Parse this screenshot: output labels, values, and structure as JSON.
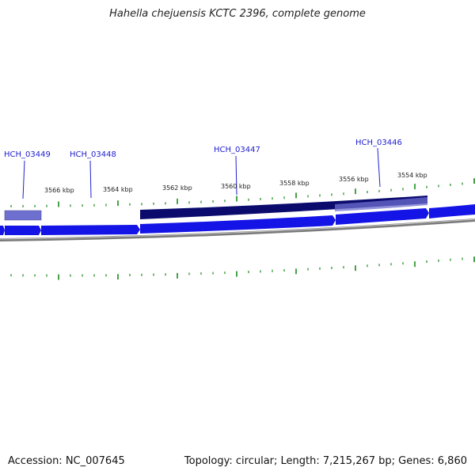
{
  "title": "Hahella chejuensis KCTC 2396, complete genome",
  "footer": {
    "accession": "Accession: NC_007645",
    "summary": "Topology: circular; Length: 7,215,267 bp; Genes: 6,860"
  },
  "colors": {
    "tick": "#1a8a1a",
    "gene_forward": "#1414e6",
    "gene_forward_light": "#5a5aff",
    "gene_reverse_dark": "#0b0b6e",
    "gene_reverse_light": "#6f6fd0",
    "backbone": "#7a7a7a",
    "label": "#2020d0"
  },
  "ticks": {
    "labels": [
      "3566 kbp",
      "3564 kbp",
      "3562 kbp",
      "3560 kbp",
      "3558 kbp",
      "3556 kbp",
      "3554 kbp"
    ]
  },
  "genes": {
    "labels": [
      "HCH_03449",
      "HCH_03448",
      "HCH_03447",
      "HCH_03446"
    ]
  }
}
